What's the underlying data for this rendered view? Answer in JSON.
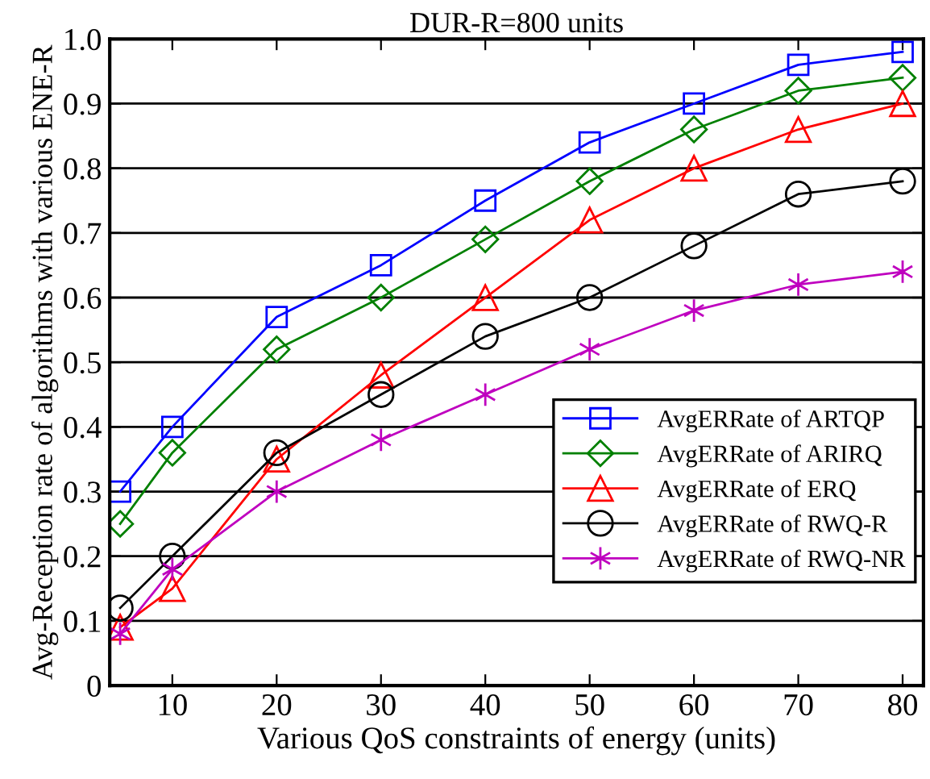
{
  "chart_data": {
    "type": "line",
    "title": "DUR-R=800 units",
    "xlabel": "Various QoS constraints of energy (units)",
    "ylabel": "Avg-Reception rate of algorithms with various ENE-R",
    "x": [
      5,
      10,
      20,
      30,
      40,
      50,
      60,
      70,
      80
    ],
    "series": [
      {
        "name": "AvgERRate of ARTQP",
        "color": "#0000ff",
        "marker": "square",
        "values": [
          0.3,
          0.4,
          0.57,
          0.65,
          0.75,
          0.84,
          0.9,
          0.96,
          0.98
        ]
      },
      {
        "name": "AvgERRate of ARIRQ",
        "color": "#008000",
        "marker": "diamond",
        "values": [
          0.25,
          0.36,
          0.52,
          0.6,
          0.69,
          0.78,
          0.86,
          0.92,
          0.94
        ]
      },
      {
        "name": "AvgERRate of ERQ",
        "color": "#ff0000",
        "marker": "triangle",
        "values": [
          0.09,
          0.15,
          0.35,
          0.48,
          0.6,
          0.72,
          0.8,
          0.86,
          0.9
        ]
      },
      {
        "name": "AvgERRate of RWQ-R",
        "color": "#000000",
        "marker": "circle",
        "values": [
          0.12,
          0.2,
          0.36,
          0.45,
          0.54,
          0.6,
          0.68,
          0.76,
          0.78
        ]
      },
      {
        "name": "AvgERRate of RWQ-NR",
        "color": "#bf00bf",
        "marker": "cross",
        "values": [
          0.08,
          0.18,
          0.3,
          0.38,
          0.45,
          0.52,
          0.58,
          0.62,
          0.64
        ]
      }
    ],
    "xlim": [
      4,
      82
    ],
    "xticks": [
      10,
      20,
      30,
      40,
      50,
      60,
      70,
      80
    ],
    "ylim": [
      0,
      1
    ],
    "yticks": [
      0,
      0.1,
      0.2,
      0.3,
      0.4,
      0.5,
      0.6,
      0.7,
      0.8,
      0.9,
      {
        "value": 1,
        "label": "1.0"
      }
    ],
    "grid": "y",
    "legend": "bottom right",
    "line_style": "solid"
  }
}
